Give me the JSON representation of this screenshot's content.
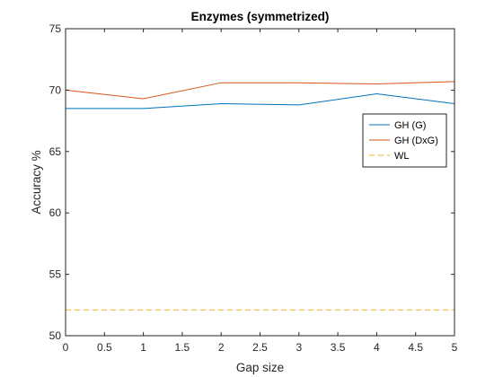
{
  "chart_data": {
    "type": "line",
    "title": "Enzymes (symmetrized)",
    "xlabel": "Gap size",
    "ylabel": "Accuracy %",
    "xlim": [
      0,
      5
    ],
    "ylim": [
      50,
      75
    ],
    "xticks": [
      0,
      0.5,
      1,
      1.5,
      2,
      2.5,
      3,
      3.5,
      4,
      4.5,
      5
    ],
    "xtick_labels": [
      "0",
      "0.5",
      "1",
      "1.5",
      "2",
      "2.5",
      "3",
      "3.5",
      "4",
      "4.5",
      "5"
    ],
    "yticks": [
      50,
      55,
      60,
      65,
      70,
      75
    ],
    "ytick_labels": [
      "50",
      "55",
      "60",
      "65",
      "70",
      "75"
    ],
    "grid": false,
    "legend_position": "right",
    "x": [
      0,
      1,
      2,
      3,
      4,
      5
    ],
    "series": [
      {
        "name": "GH (G)",
        "values": [
          68.5,
          68.5,
          68.9,
          68.8,
          69.7,
          68.9
        ],
        "color": "#0072BD",
        "dash": "solid"
      },
      {
        "name": "GH (DxG)",
        "values": [
          70.0,
          69.3,
          70.6,
          70.6,
          70.5,
          70.7
        ],
        "color": "#D95319",
        "dash": "solid"
      },
      {
        "name": "WL",
        "values": [
          52.1,
          52.1,
          52.1,
          52.1,
          52.1,
          52.1
        ],
        "color": "#EDB120",
        "dash": "dashed"
      }
    ]
  }
}
